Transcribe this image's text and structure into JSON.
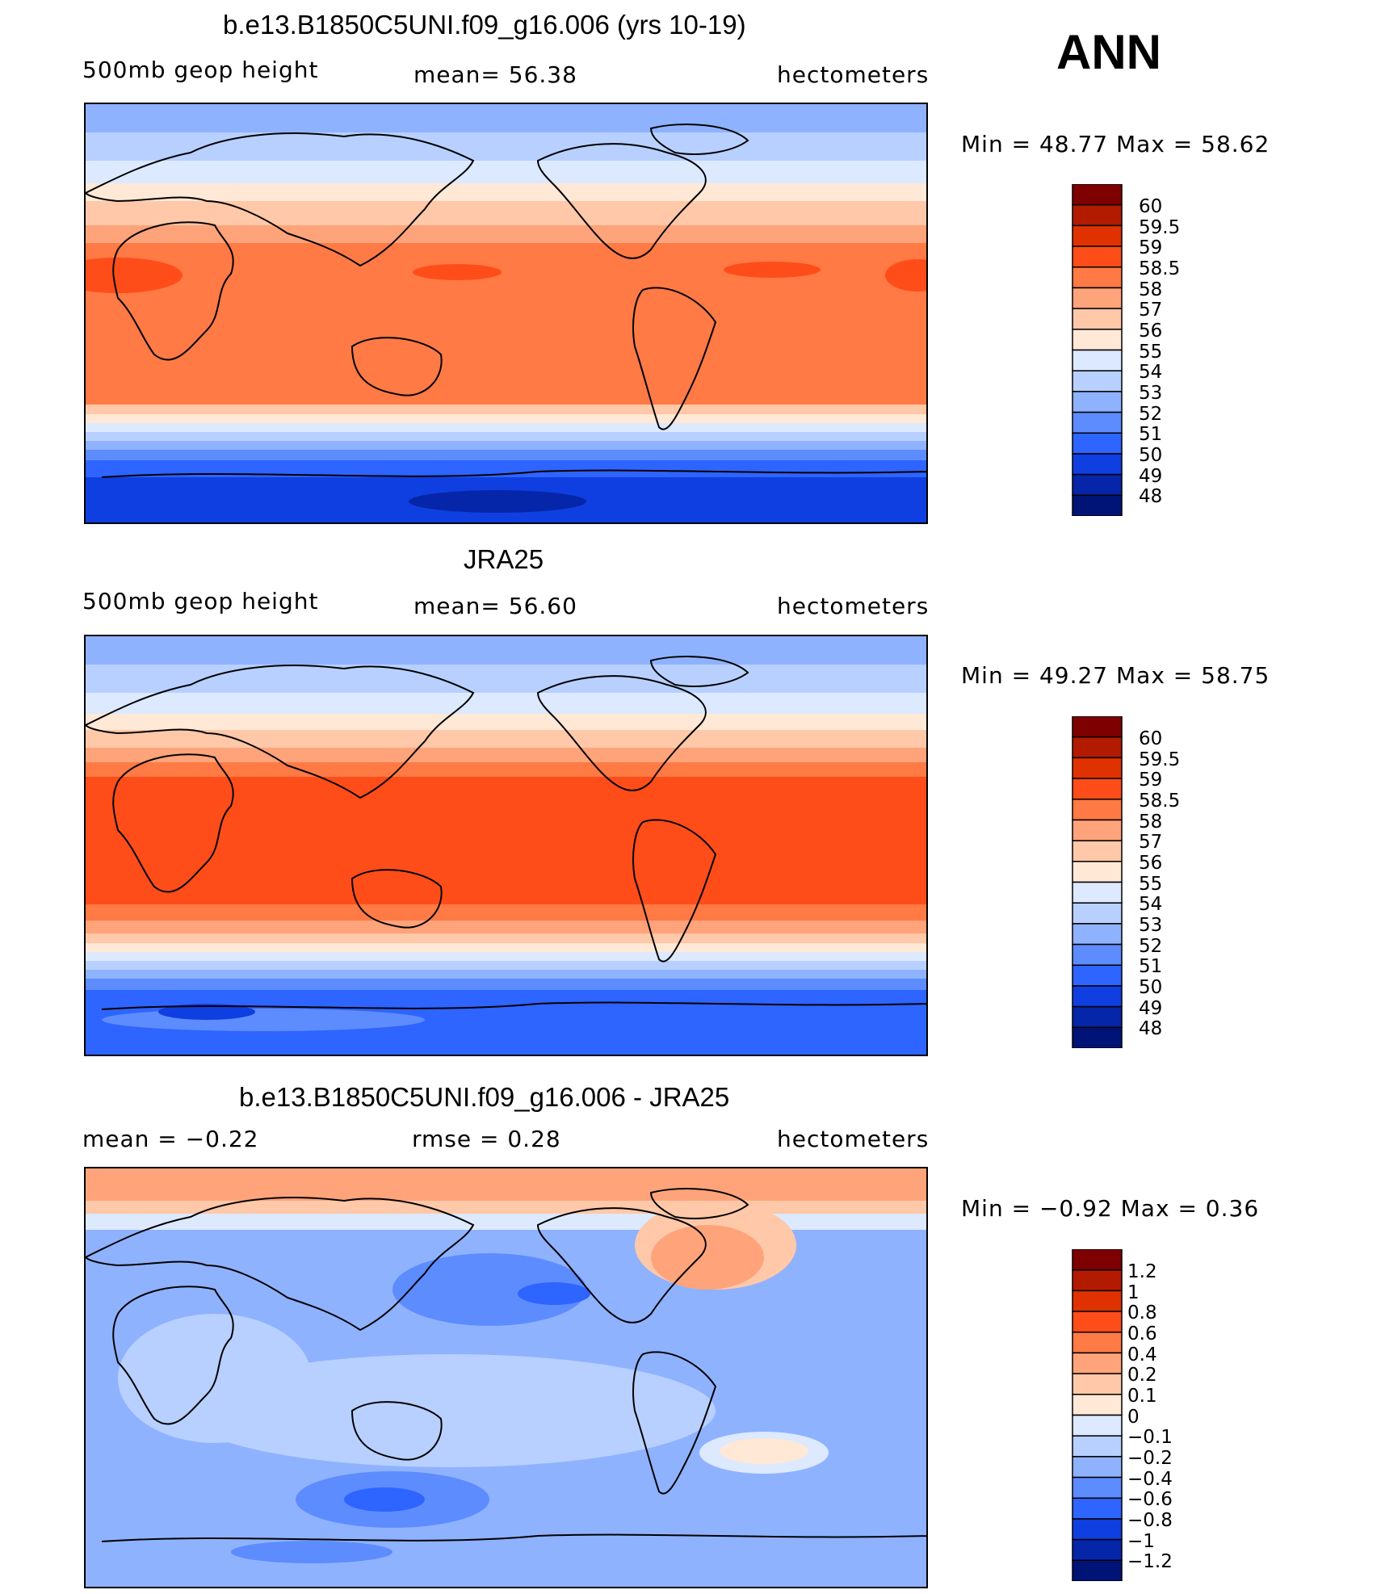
{
  "season": "ANN",
  "panels": [
    {
      "title": "b.e13.B1850C5UNI.f09_g16.006 (yrs 10-19)",
      "left": "500mb geop height",
      "center": "mean=   56.38",
      "right": "hectometers",
      "minmax": "Min =   48.77 Max =   58.62",
      "colorbar_labels": [
        "60",
        "59.5",
        "59",
        "58.5",
        "58",
        "57",
        "56",
        "55",
        "54",
        "53",
        "52",
        "51",
        "50",
        "49",
        "48"
      ]
    },
    {
      "title": "JRA25",
      "left": "500mb geop height",
      "center": "mean=   56.60",
      "right": "hectometers",
      "minmax": "Min =   49.27 Max =   58.75",
      "colorbar_labels": [
        "60",
        "59.5",
        "59",
        "58.5",
        "58",
        "57",
        "56",
        "55",
        "54",
        "53",
        "52",
        "51",
        "50",
        "49",
        "48"
      ]
    },
    {
      "title": "b.e13.B1850C5UNI.f09_g16.006 - JRA25",
      "left": "mean =   −0.22",
      "center": "rmse =    0.28",
      "right": "hectometers",
      "minmax": "Min =  −0.92 Max =    0.36",
      "colorbar_labels": [
        "1.2",
        "1",
        "0.8",
        "0.6",
        "0.4",
        "0.2",
        "0.1",
        "0",
        "−0.1",
        "−0.2",
        "−0.4",
        "−0.6",
        "−0.8",
        "−1",
        "−1.2"
      ]
    }
  ],
  "colors": {
    "scale": [
      "#7f0000",
      "#b31b00",
      "#e03200",
      "#ff4d1a",
      "#ff7a45",
      "#ffa37a",
      "#ffc8a8",
      "#ffe8d6",
      "#dce9ff",
      "#b8d0ff",
      "#8fb2ff",
      "#5d8cff",
      "#2e64ff",
      "#0f3fe0",
      "#0526a8",
      "#001478"
    ]
  }
}
